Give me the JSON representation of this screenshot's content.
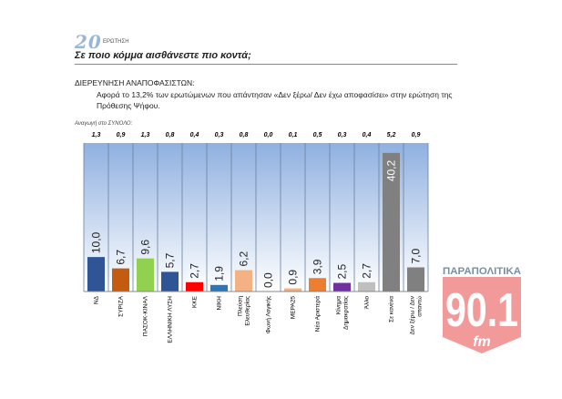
{
  "header": {
    "question_number": "20",
    "question_label": "ΕΡΩΤΗΣΗ",
    "title": "Σε ποιο κόμμα αισθάνεστε πιο κοντά;"
  },
  "section": {
    "subtitle": "ΔΙΕΡΕΥΝΗΣΗ ΑΝΑΠΟΦΑΣΙΣΤΩΝ:",
    "description": "Αφορά το 13,2% των ερωτώμενων που απάντησαν «Δεν ξέρω/ Δεν έχω αποφασίσει» στην ερώτηση της Πρόθεσης Ψήφου."
  },
  "logo": {
    "brand": "ΠΑΡΑΠΟΛΙΤΙΚΑ",
    "freq": "90.1",
    "band": "fm"
  },
  "chart_data": {
    "type": "bar",
    "title": "Σε ποιο κόμμα αισθάνεστε πιο κοντά;",
    "categories": [
      "ΝΔ",
      "ΣΥΡΙΖΑ",
      "ΠΑΣΟΚ-ΚΙΝΑΛ",
      "ΕΛΛΗΝΙΚΗ ΛΥΣΗ",
      "ΚΚΕ",
      "ΝΙΚΗ",
      "Πλεύση Ελευθερίας",
      "Φωνή Λογικής",
      "ΜΕΡΑ25",
      "Νέα Αριστερά",
      "Κίνημα Δημοκρατίας",
      "Άλλο",
      "Σε κανένα",
      "Δεν ξέρω / Δεν απαντώ"
    ],
    "values": [
      10.0,
      6.7,
      9.6,
      5.7,
      2.7,
      1.9,
      6.2,
      0.0,
      0.9,
      3.9,
      2.5,
      2.7,
      40.2,
      7.0
    ],
    "value_labels": [
      "10,0",
      "6,7",
      "9,6",
      "5,7",
      "2,7",
      "1,9",
      "6,2",
      "0,0",
      "0,9",
      "3,9",
      "2,5",
      "2,7",
      "40,2",
      "7,0"
    ],
    "total_reduction_label": "Αναγωγή στο ΣΥΝΟΛΟ:",
    "total_reduction": [
      "1,3",
      "0,9",
      "1,3",
      "0,8",
      "0,4",
      "0,3",
      "0,8",
      "0,0",
      "0,1",
      "0,5",
      "0,3",
      "0,4",
      "5,2",
      "0,9"
    ],
    "colors": [
      "#2f5597",
      "#c55a11",
      "#92d050",
      "#2f5597",
      "#ff0000",
      "#2e75b6",
      "#f4b183",
      "#f4b183",
      "#f4b183",
      "#ed7d31",
      "#7030a0",
      "#bfbfbf",
      "#808080",
      "#808080"
    ],
    "ylim": [
      0,
      42
    ],
    "xlabel": "",
    "ylabel": ""
  }
}
